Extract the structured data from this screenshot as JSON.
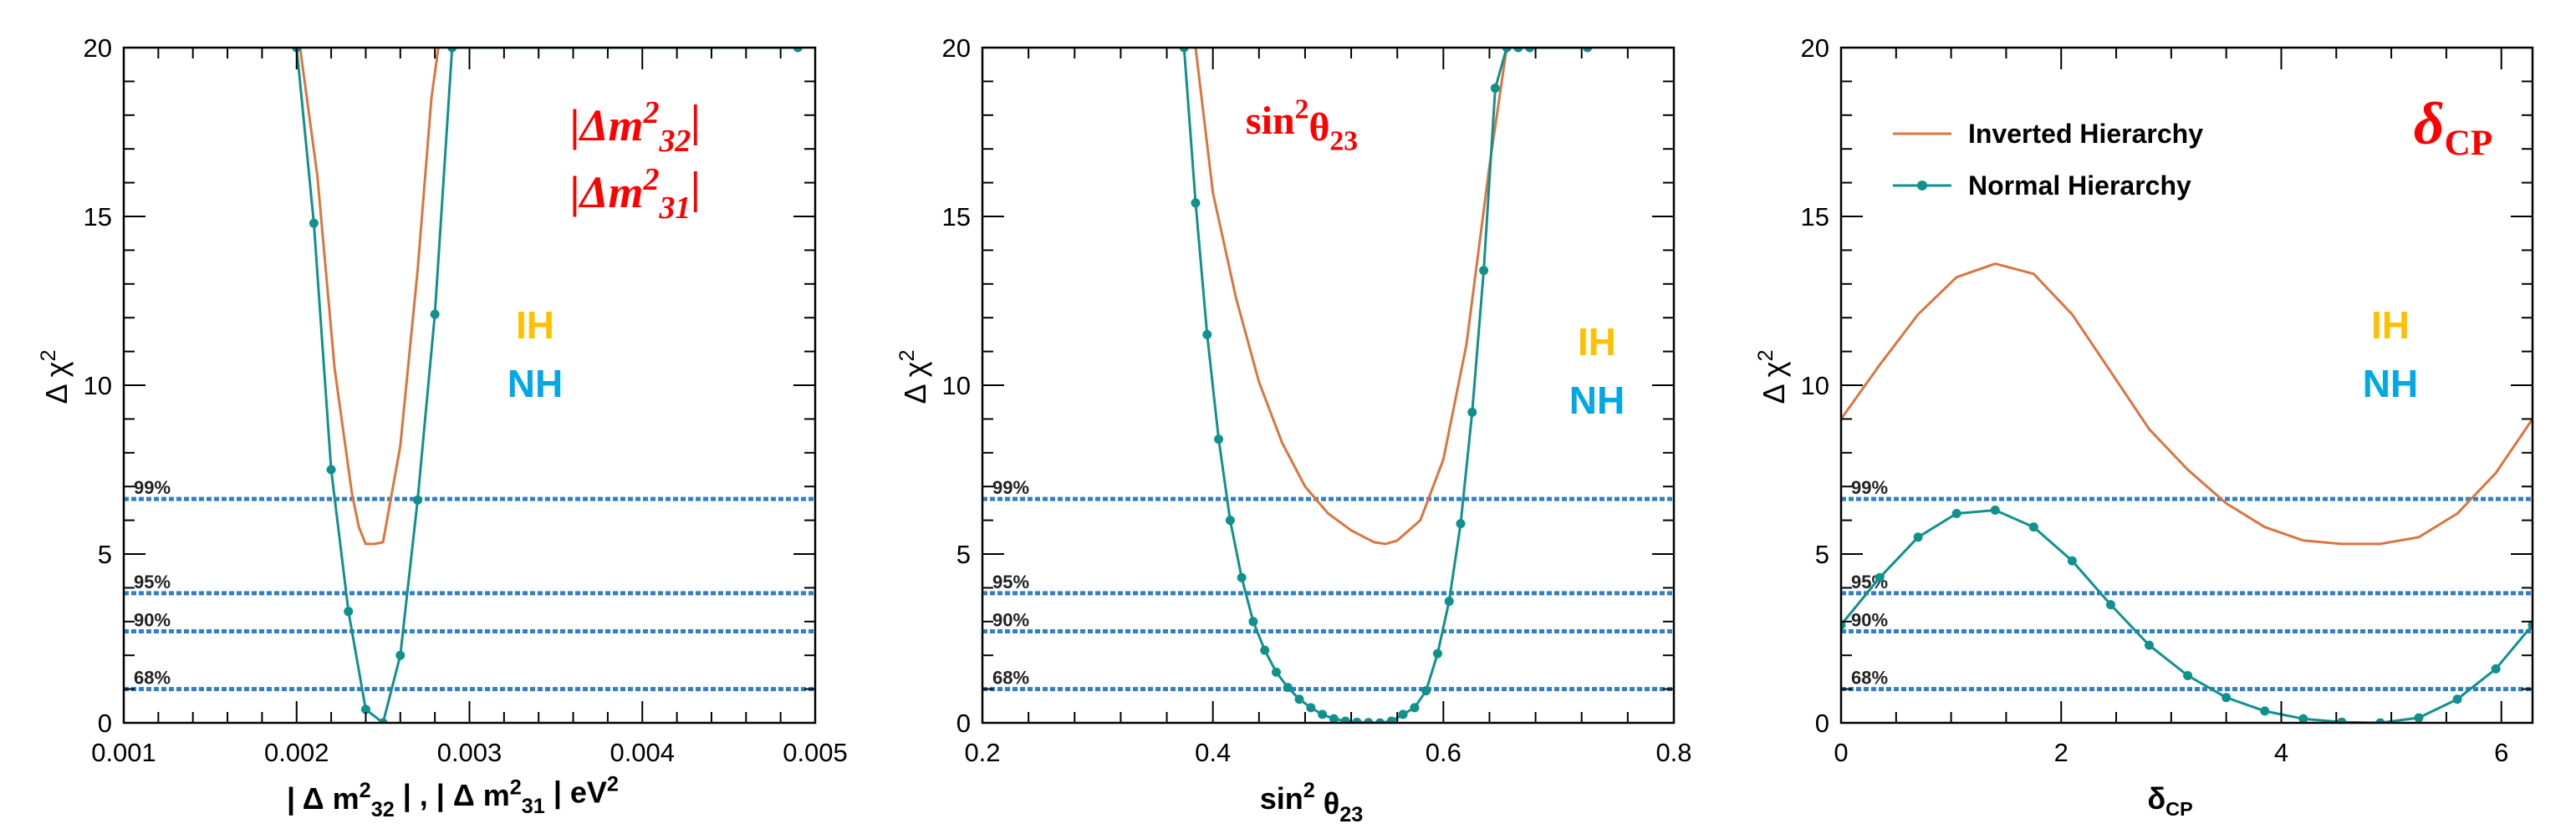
{
  "colors": {
    "ih": "#d9763f",
    "nh": "#10918d",
    "cl": "#2f7fc9",
    "title": "#ff0000",
    "ih_label": "#ffc000",
    "nh_label": "#00a8e8"
  },
  "chart_data": [
    {
      "type": "line",
      "id": "dm2",
      "title": "",
      "xlabel": "| Δ m²₃₂ | , | Δ m²₃₁ |  eV²",
      "ylabel": "Δ χ²",
      "xlim": [
        0.001,
        0.005
      ],
      "ylim": [
        0,
        20
      ],
      "xticks": [
        0.001,
        0.002,
        0.003,
        0.004,
        0.005
      ],
      "xticklabels": [
        "0.001",
        "0.002",
        "0.003",
        "0.004",
        "0.005"
      ],
      "yticks": [
        0,
        5,
        10,
        15,
        20
      ],
      "yticklabels": [
        "0",
        "5",
        "10",
        "15",
        "20"
      ],
      "corner_label": [
        "|Δm²₃₂|",
        "|Δm²₃₁|"
      ],
      "hierarchy_labels": [
        "IH",
        "NH"
      ],
      "cl_lines": [
        {
          "label": "99%",
          "y": 6.63
        },
        {
          "label": "95%",
          "y": 3.84
        },
        {
          "label": "90%",
          "y": 2.71
        },
        {
          "label": "68%",
          "y": 1.0
        }
      ],
      "series": [
        {
          "name": "",
          "hierarchy": "IH",
          "markers": false,
          "x": [
            0.00202,
            0.00212,
            0.00222,
            0.00232,
            0.00236,
            0.0024,
            0.00245,
            0.0025,
            0.0026,
            0.0027,
            0.00278,
            0.00282
          ],
          "y": [
            20,
            16.2,
            10.5,
            6.8,
            5.8,
            5.3,
            5.3,
            5.35,
            8.2,
            13.4,
            18.5,
            20
          ]
        },
        {
          "name": "",
          "hierarchy": "NH",
          "markers": true,
          "x": [
            0.002,
            0.0021,
            0.0022,
            0.0023,
            0.0024,
            0.0025,
            0.0026,
            0.0027,
            0.0028,
            0.0029,
            0.0049
          ],
          "y": [
            20,
            14.8,
            7.5,
            3.3,
            0.4,
            0.0,
            2.0,
            6.6,
            12.1,
            20,
            20
          ]
        }
      ]
    },
    {
      "type": "line",
      "id": "theta23",
      "title": "",
      "xlabel": "sin² θ₂₃",
      "ylabel": "Δ χ²",
      "xlim": [
        0.2,
        0.8
      ],
      "ylim": [
        0,
        20
      ],
      "xticks": [
        0.2,
        0.4,
        0.6,
        0.8
      ],
      "xticklabels": [
        "0.2",
        "0.4",
        "0.6",
        "0.8"
      ],
      "yticks": [
        0,
        5,
        10,
        15,
        20
      ],
      "yticklabels": [
        "0",
        "5",
        "10",
        "15",
        "20"
      ],
      "corner_label": [
        "sin²θ₂₃"
      ],
      "hierarchy_labels": [
        "IH",
        "NH"
      ],
      "cl_lines": [
        {
          "label": "99%",
          "y": 6.63
        },
        {
          "label": "95%",
          "y": 3.84
        },
        {
          "label": "90%",
          "y": 2.71
        },
        {
          "label": "68%",
          "y": 1.0
        }
      ],
      "series": [
        {
          "name": "",
          "hierarchy": "IH",
          "markers": false,
          "x": [
            0.385,
            0.4,
            0.42,
            0.44,
            0.46,
            0.48,
            0.5,
            0.52,
            0.54,
            0.55,
            0.56,
            0.58,
            0.6,
            0.62,
            0.64,
            0.655
          ],
          "y": [
            20,
            15.7,
            12.6,
            10.1,
            8.3,
            7.0,
            6.2,
            5.7,
            5.35,
            5.3,
            5.4,
            6.0,
            7.8,
            11.2,
            16.5,
            20
          ]
        },
        {
          "name": "",
          "hierarchy": "NH",
          "markers": true,
          "x": [
            0.375,
            0.385,
            0.395,
            0.405,
            0.415,
            0.425,
            0.435,
            0.445,
            0.455,
            0.465,
            0.475,
            0.485,
            0.495,
            0.505,
            0.515,
            0.525,
            0.535,
            0.545,
            0.555,
            0.565,
            0.575,
            0.585,
            0.595,
            0.605,
            0.615,
            0.625,
            0.635,
            0.645,
            0.655,
            0.665,
            0.675,
            0.725
          ],
          "y": [
            20,
            15.4,
            11.5,
            8.4,
            6.0,
            4.3,
            3.0,
            2.15,
            1.5,
            1.05,
            0.7,
            0.45,
            0.25,
            0.12,
            0.05,
            0.02,
            0.01,
            0.0,
            0.05,
            0.25,
            0.45,
            0.95,
            2.05,
            3.6,
            5.9,
            9.2,
            13.4,
            18.8,
            20,
            20,
            20,
            20
          ]
        }
      ]
    },
    {
      "type": "line",
      "id": "dcp",
      "title": "",
      "xlabel": "δCP",
      "ylabel": "Δ χ²",
      "xlim": [
        0,
        6.2832
      ],
      "ylim": [
        0,
        20
      ],
      "xticks": [
        0,
        2,
        4,
        6
      ],
      "xticklabels": [
        "0",
        "2",
        "4",
        "6"
      ],
      "yticks": [
        0,
        5,
        10,
        15,
        20
      ],
      "yticklabels": [
        "0",
        "5",
        "10",
        "15",
        "20"
      ],
      "corner_label": [
        "δCP"
      ],
      "hierarchy_labels": [
        "IH",
        "NH"
      ],
      "legend": {
        "placement": "top-left",
        "entries": [
          "Inverted Hierarchy",
          "Normal Hierarchy"
        ]
      },
      "cl_lines": [
        {
          "label": "99%",
          "y": 6.63
        },
        {
          "label": "95%",
          "y": 3.84
        },
        {
          "label": "90%",
          "y": 2.71
        },
        {
          "label": "68%",
          "y": 1.0
        }
      ],
      "series": [
        {
          "name": "Inverted Hierarchy",
          "hierarchy": "IH",
          "markers": false,
          "x": [
            0,
            0.35,
            0.7,
            1.05,
            1.4,
            1.75,
            2.1,
            2.45,
            2.8,
            3.15,
            3.5,
            3.85,
            4.2,
            4.55,
            4.9,
            5.25,
            5.6,
            5.95,
            6.2832
          ],
          "y": [
            9.0,
            10.6,
            12.1,
            13.2,
            13.6,
            13.3,
            12.1,
            10.4,
            8.7,
            7.5,
            6.5,
            5.8,
            5.4,
            5.3,
            5.3,
            5.5,
            6.2,
            7.4,
            9.0
          ]
        },
        {
          "name": "Normal Hierarchy",
          "hierarchy": "NH",
          "markers": true,
          "x": [
            0,
            0.35,
            0.7,
            1.05,
            1.4,
            1.75,
            2.1,
            2.45,
            2.8,
            3.15,
            3.5,
            3.85,
            4.2,
            4.55,
            4.9,
            5.25,
            5.6,
            5.95,
            6.2832
          ],
          "y": [
            2.9,
            4.3,
            5.5,
            6.2,
            6.3,
            5.8,
            4.8,
            3.5,
            2.3,
            1.4,
            0.75,
            0.35,
            0.12,
            0.02,
            0.0,
            0.15,
            0.7,
            1.6,
            2.9
          ]
        }
      ]
    }
  ]
}
